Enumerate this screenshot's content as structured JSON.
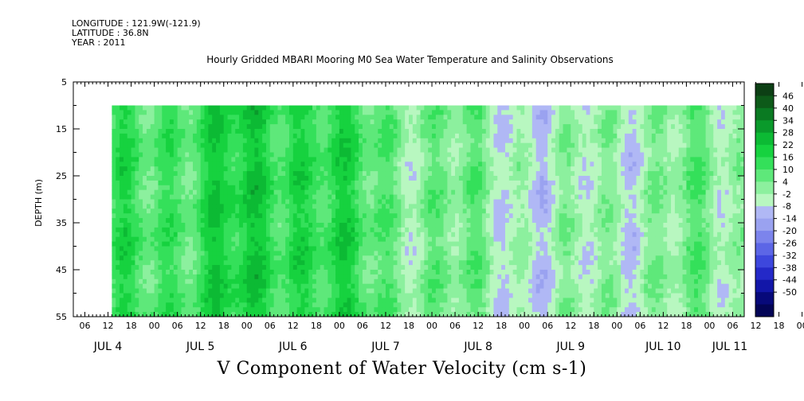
{
  "meta": {
    "longitude": "LONGITUDE : 121.9W(-121.9)",
    "latitude": "LATITUDE : 36.8N",
    "year": "YEAR : 2011"
  },
  "chart_data": {
    "type": "heatmap",
    "title": "Hourly Gridded MBARI Mooring M0 Sea Water Temperature and Salinity Observations",
    "xlabel": "V Component of Water Velocity (cm s-1)",
    "ylabel": "DEPTH (m)",
    "y_ticks": [
      "5",
      "15",
      "25",
      "35",
      "45",
      "55"
    ],
    "y_range": [
      5,
      55
    ],
    "data_depth_range": [
      10,
      55
    ],
    "x_hour_ticks": [
      "06",
      "12",
      "18",
      "00",
      "06",
      "12",
      "18",
      "00",
      "06",
      "12",
      "18",
      "00",
      "06",
      "12",
      "18",
      "00",
      "06",
      "12",
      "18",
      "00",
      "06",
      "12",
      "18",
      "00",
      "06",
      "12",
      "18",
      "00",
      "06",
      "12",
      "18",
      "00",
      "06"
    ],
    "x_days": [
      "JUL  4",
      "JUL  5",
      "JUL  6",
      "JUL  7",
      "JUL  8",
      "JUL  9",
      "JUL 10",
      "JUL 11"
    ],
    "x_range": [
      "2011-07-04 03:00",
      "2011-07-11 09:00"
    ],
    "data_start": "2011-07-04 13:00",
    "colorbar": {
      "levels": [
        46,
        40,
        34,
        28,
        22,
        16,
        10,
        4,
        -2,
        -8,
        -14,
        -20,
        -26,
        -32,
        -38,
        -44,
        -50
      ],
      "colors": [
        "#0c3f14",
        "#0d5a19",
        "#0a7a22",
        "#0a9a2b",
        "#0cba34",
        "#16d23f",
        "#34e05a",
        "#5ee87a",
        "#8cf09e",
        "#b8f7c0",
        "#b0b8f5",
        "#9aa2f0",
        "#7c84ec",
        "#5c66e6",
        "#3d47dd",
        "#2429c8",
        "#1216a8",
        "#07097a",
        "#030456"
      ]
    },
    "velocity_by_day": [
      {
        "day": "JUL 4",
        "v_cm_s": 8
      },
      {
        "day": "JUL 5",
        "v_cm_s": 14
      },
      {
        "day": "JUL 6",
        "v_cm_s": 18
      },
      {
        "day": "JUL 7",
        "v_cm_s": 6
      },
      {
        "day": "JUL 8",
        "v_cm_s": 0
      },
      {
        "day": "JUL 9",
        "v_cm_s": -6
      },
      {
        "day": "JUL 10",
        "v_cm_s": 2
      },
      {
        "day": "JUL 11",
        "v_cm_s": -2
      }
    ]
  }
}
